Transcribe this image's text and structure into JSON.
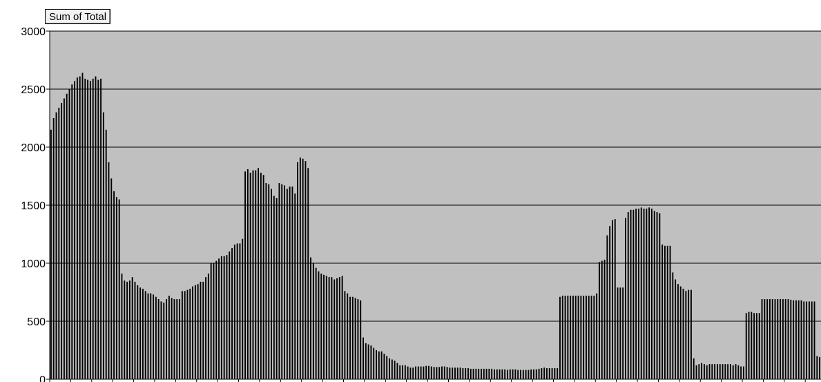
{
  "field_button": {
    "label": "Sum of Total"
  },
  "chart_data": {
    "type": "bar",
    "title": "",
    "xlabel": "",
    "ylabel": "",
    "ylim": [
      0,
      3000
    ],
    "yticks": [
      0,
      500,
      1000,
      1500,
      2000,
      2500,
      3000
    ],
    "grid": true,
    "legend": "none",
    "colors": {
      "plot_background": "#c0c0c0",
      "bar_fill": "#000000",
      "gridline": "#000000"
    },
    "values": [
      2150,
      2250,
      2300,
      2340,
      2380,
      2420,
      2460,
      2500,
      2540,
      2570,
      2600,
      2610,
      2640,
      2590,
      2580,
      2570,
      2590,
      2610,
      2580,
      2590,
      2300,
      2150,
      1870,
      1730,
      1620,
      1570,
      1550,
      910,
      850,
      840,
      850,
      880,
      840,
      810,
      790,
      780,
      760,
      740,
      740,
      730,
      710,
      690,
      670,
      660,
      690,
      720,
      700,
      690,
      690,
      690,
      760,
      760,
      770,
      780,
      800,
      810,
      820,
      840,
      840,
      880,
      910,
      1000,
      1000,
      1020,
      1040,
      1060,
      1060,
      1070,
      1100,
      1130,
      1160,
      1170,
      1170,
      1210,
      1790,
      1810,
      1780,
      1800,
      1800,
      1820,
      1780,
      1760,
      1690,
      1680,
      1640,
      1580,
      1560,
      1690,
      1680,
      1670,
      1640,
      1660,
      1660,
      1600,
      1870,
      1910,
      1900,
      1880,
      1820,
      1050,
      1000,
      960,
      930,
      910,
      900,
      890,
      880,
      880,
      860,
      870,
      880,
      890,
      760,
      740,
      710,
      710,
      700,
      690,
      680,
      360,
      310,
      300,
      290,
      270,
      250,
      240,
      240,
      220,
      200,
      180,
      170,
      160,
      140,
      120,
      120,
      120,
      110,
      100,
      100,
      110,
      110,
      110,
      110,
      115,
      115,
      110,
      105,
      105,
      105,
      110,
      110,
      105,
      100,
      100,
      100,
      100,
      100,
      95,
      95,
      95,
      90,
      90,
      90,
      90,
      90,
      90,
      90,
      90,
      90,
      85,
      85,
      85,
      85,
      85,
      80,
      85,
      85,
      85,
      80,
      80,
      80,
      80,
      80,
      85,
      85,
      85,
      90,
      95,
      100,
      95,
      95,
      95,
      95,
      95,
      710,
      720,
      720,
      720,
      720,
      720,
      720,
      720,
      720,
      720,
      720,
      720,
      720,
      720,
      740,
      1010,
      1020,
      1030,
      1240,
      1320,
      1370,
      1380,
      790,
      790,
      790,
      1390,
      1440,
      1460,
      1460,
      1470,
      1470,
      1480,
      1470,
      1470,
      1480,
      1470,
      1450,
      1440,
      1430,
      1160,
      1150,
      1150,
      1150,
      920,
      860,
      820,
      800,
      780,
      760,
      770,
      770,
      180,
      120,
      130,
      140,
      130,
      120,
      130,
      130,
      130,
      130,
      130,
      130,
      130,
      130,
      130,
      120,
      130,
      120,
      110,
      110,
      570,
      580,
      580,
      570,
      570,
      570,
      690,
      690,
      690,
      690,
      690,
      690,
      690,
      690,
      690,
      690,
      690,
      685,
      680,
      680,
      680,
      680,
      670,
      670,
      670,
      670,
      670,
      200,
      190
    ]
  }
}
